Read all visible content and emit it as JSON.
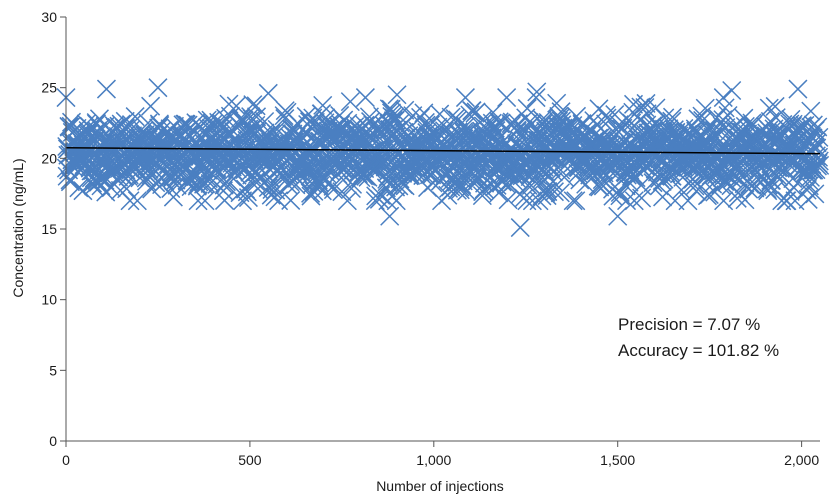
{
  "chart_data": {
    "type": "scatter",
    "title": "",
    "xlabel": "Number of injections",
    "ylabel": "Concentration (ng/mL)",
    "xlim": [
      0,
      2050
    ],
    "ylim": [
      0,
      30
    ],
    "x_ticks": [
      {
        "value": 0,
        "label": "0"
      },
      {
        "value": 500,
        "label": "500"
      },
      {
        "value": 1000,
        "label": "1,000"
      },
      {
        "value": 1500,
        "label": "1,500"
      },
      {
        "value": 2000,
        "label": "2,000"
      }
    ],
    "y_ticks": [
      {
        "value": 0,
        "label": "0"
      },
      {
        "value": 5,
        "label": "5"
      },
      {
        "value": 10,
        "label": "10"
      },
      {
        "value": 15,
        "label": "15"
      },
      {
        "value": 20,
        "label": "20"
      },
      {
        "value": 25,
        "label": "25"
      },
      {
        "value": 30,
        "label": "30"
      }
    ],
    "grid": false,
    "marker": "x",
    "marker_color": "#4a7fc1",
    "line_color": "#000000",
    "n_points": 2050,
    "mean": 20.36,
    "std": 1.44,
    "trend_line": {
      "x": [
        0,
        2050
      ],
      "y": [
        20.75,
        20.33
      ]
    },
    "outliers": [
      {
        "x": 880,
        "y": 15.9
      },
      {
        "x": 1235,
        "y": 15.1
      },
      {
        "x": 1500,
        "y": 15.9
      },
      {
        "x": 1280,
        "y": 24.7
      },
      {
        "x": 1990,
        "y": 24.9
      },
      {
        "x": 250,
        "y": 25.0
      },
      {
        "x": 110,
        "y": 24.9
      },
      {
        "x": 1810,
        "y": 24.8
      },
      {
        "x": 550,
        "y": 24.6
      },
      {
        "x": 900,
        "y": 24.5
      }
    ],
    "annotations": [
      {
        "text": "Precision = 7.07 %"
      },
      {
        "text": "Accuracy = 101.82 %"
      }
    ]
  }
}
